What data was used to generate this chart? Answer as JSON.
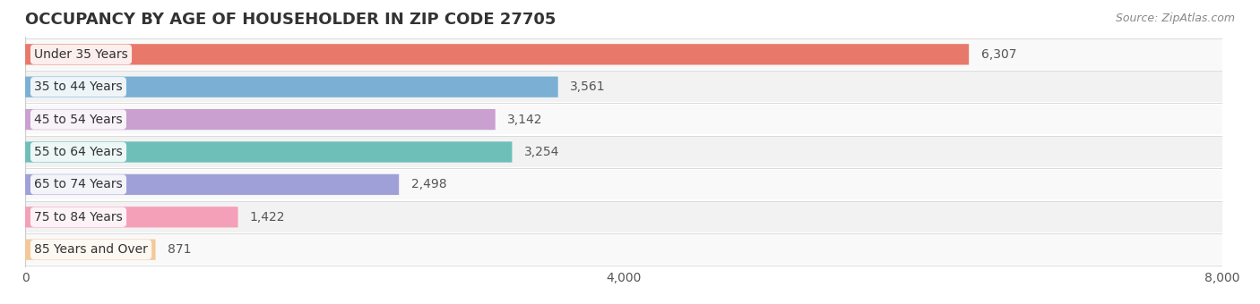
{
  "title": "OCCUPANCY BY AGE OF HOUSEHOLDER IN ZIP CODE 27705",
  "source": "Source: ZipAtlas.com",
  "categories": [
    "Under 35 Years",
    "35 to 44 Years",
    "45 to 54 Years",
    "55 to 64 Years",
    "65 to 74 Years",
    "75 to 84 Years",
    "85 Years and Over"
  ],
  "values": [
    6307,
    3561,
    3142,
    3254,
    2498,
    1422,
    871
  ],
  "bar_colors": [
    "#e8796a",
    "#7bafd4",
    "#c9a0d0",
    "#6dbfb8",
    "#a0a0d8",
    "#f4a0b8",
    "#f5c89a"
  ],
  "xlim": [
    0,
    8000
  ],
  "xticks": [
    0,
    4000,
    8000
  ],
  "title_fontsize": 13,
  "label_fontsize": 10,
  "value_fontsize": 10,
  "source_fontsize": 9,
  "background_color": "#ffffff",
  "row_bg_colors": [
    "#f9f9f9",
    "#f2f2f2"
  ]
}
